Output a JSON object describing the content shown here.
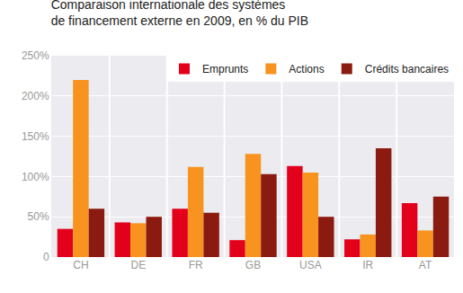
{
  "chart_data": {
    "type": "bar",
    "title": "Comparaison internationale des systèmes\nde financement externe en 2009, en % du PIB",
    "categories": [
      "CH",
      "DE",
      "FR",
      "GB",
      "USA",
      "IR",
      "AT"
    ],
    "series": [
      {
        "name": "Emprunts",
        "color": "#e3001b",
        "values": [
          35,
          43,
          60,
          21,
          113,
          22,
          67
        ]
      },
      {
        "name": "Actions",
        "color": "#f7931e",
        "values": [
          220,
          42,
          112,
          128,
          105,
          28,
          33
        ]
      },
      {
        "name": "Crédits bancaires",
        "color": "#8b1a10",
        "values": [
          60,
          50,
          55,
          103,
          50,
          135,
          75
        ]
      }
    ],
    "ylim": [
      0,
      250
    ],
    "yticks": [
      0,
      {
        "value": 50,
        "label": "50%"
      },
      {
        "value": 100,
        "label": "100%"
      },
      {
        "value": 150,
        "label": "150%"
      },
      {
        "value": 200,
        "label": "200%"
      },
      {
        "value": 250,
        "label": "250%"
      }
    ],
    "grid": true,
    "legend": "top-right"
  }
}
